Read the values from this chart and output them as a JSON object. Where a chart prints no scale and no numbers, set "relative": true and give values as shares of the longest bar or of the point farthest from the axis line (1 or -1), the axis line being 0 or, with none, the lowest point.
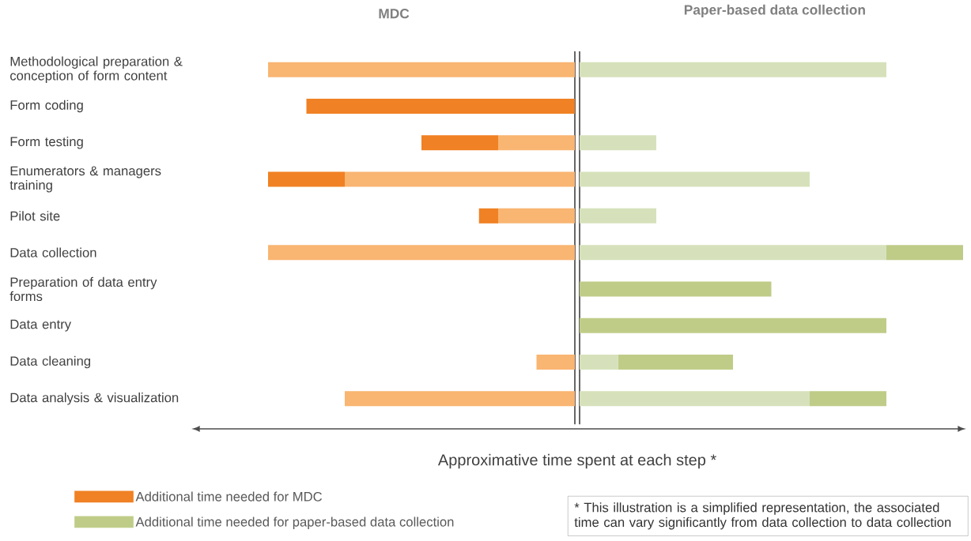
{
  "chart_data": [
    {
      "type": "bar",
      "orientation": "horizontal",
      "stacked": true,
      "relative": true,
      "title": "MDC",
      "tick_labels": "y",
      "legend": "bottom left",
      "categories": [
        "Methodological preparation & conception of form content",
        "Form coding",
        "Form testing",
        "Enumerators & managers training",
        "Pilot site",
        "Data collection",
        "Preparation of data entry forms",
        "Data entry",
        "Data cleaning",
        "Data analysis & visualization"
      ],
      "series": [
        {
          "color": "#f9b572",
          "values": [
            1,
            null,
            0.25,
            0.75,
            0.25,
            1,
            null,
            null,
            0.125,
            0.75
          ]
        },
        {
          "name": "Additional time needed for MDC",
          "color": "#f08124",
          "values": [
            null,
            0.875,
            0.25,
            0.25,
            0.0625,
            null,
            null,
            null,
            null,
            null
          ]
        }
      ]
    },
    {
      "type": "bar",
      "orientation": "horizontal",
      "stacked": true,
      "relative": true,
      "title": "Paper-based data collection",
      "tick_labels": false,
      "legend": "bottom left",
      "xlabel": "Approximative time spent at each step *",
      "annotations": [
        "* This illustration is a simplified representation, the associated time can vary significantly from data collection to data collection"
      ],
      "categories": [
        null,
        null,
        null,
        null,
        null,
        null,
        null,
        null,
        null,
        null
      ],
      "series": [
        {
          "color": "#d6e1bb",
          "values": [
            0.8,
            null,
            0.2,
            0.6,
            0.2,
            0.8,
            null,
            null,
            0.1,
            0.6
          ]
        },
        {
          "name": "Additional time needed for paper-based data collection",
          "color": "#bfcc88",
          "values": [
            null,
            null,
            null,
            null,
            null,
            0.2,
            0.5,
            0.8,
            0.3,
            0.2
          ]
        }
      ]
    }
  ]
}
